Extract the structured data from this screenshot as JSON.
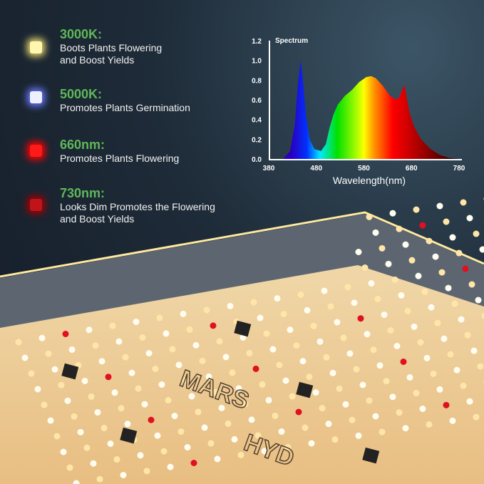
{
  "features": [
    {
      "title": "3000K:",
      "desc": [
        "Boots Plants Flowering",
        "and Boost Yields"
      ],
      "color": "#fff6b0",
      "glow": "#e8d870"
    },
    {
      "title": "5000K:",
      "desc": [
        "Promotes Plants Germination"
      ],
      "color": "#eef0ff",
      "glow": "#6a78ff"
    },
    {
      "title": "660nm:",
      "desc": [
        "Promotes Plants Flowering"
      ],
      "color": "#ff1a1a",
      "glow": "#ff0000"
    },
    {
      "title": "730nm:",
      "desc": [
        "Looks Dim Promotes the Flowering",
        "and Boost Yields"
      ],
      "color": "#c0141a",
      "glow": "#a00000"
    }
  ],
  "chart_data": {
    "type": "area",
    "title": "Spectrum",
    "xlabel": "Wavelength(nm)",
    "ylabel": "",
    "xlim": [
      380,
      780
    ],
    "ylim": [
      0,
      1.2
    ],
    "xticks": [
      "380",
      "480",
      "580",
      "680",
      "780"
    ],
    "yticks": [
      "0.0",
      "0.2",
      "0.4",
      "0.6",
      "0.8",
      "1.0",
      "1.2"
    ],
    "x": [
      410,
      425,
      435,
      441,
      447,
      452,
      458,
      466,
      476,
      490,
      500,
      508,
      516,
      525,
      540,
      555,
      570,
      585,
      595,
      605,
      620,
      635,
      648,
      655,
      662,
      666,
      670,
      676,
      685,
      700,
      720,
      740,
      760,
      780
    ],
    "y": [
      0,
      0.08,
      0.35,
      0.75,
      1.0,
      0.8,
      0.45,
      0.2,
      0.1,
      0.08,
      0.15,
      0.32,
      0.45,
      0.55,
      0.64,
      0.7,
      0.78,
      0.83,
      0.84,
      0.82,
      0.74,
      0.64,
      0.6,
      0.63,
      0.72,
      0.74,
      0.62,
      0.47,
      0.33,
      0.2,
      0.1,
      0.04,
      0.01,
      0
    ],
    "grid": false
  },
  "logo": {
    "text": "MARS HYDRO"
  }
}
